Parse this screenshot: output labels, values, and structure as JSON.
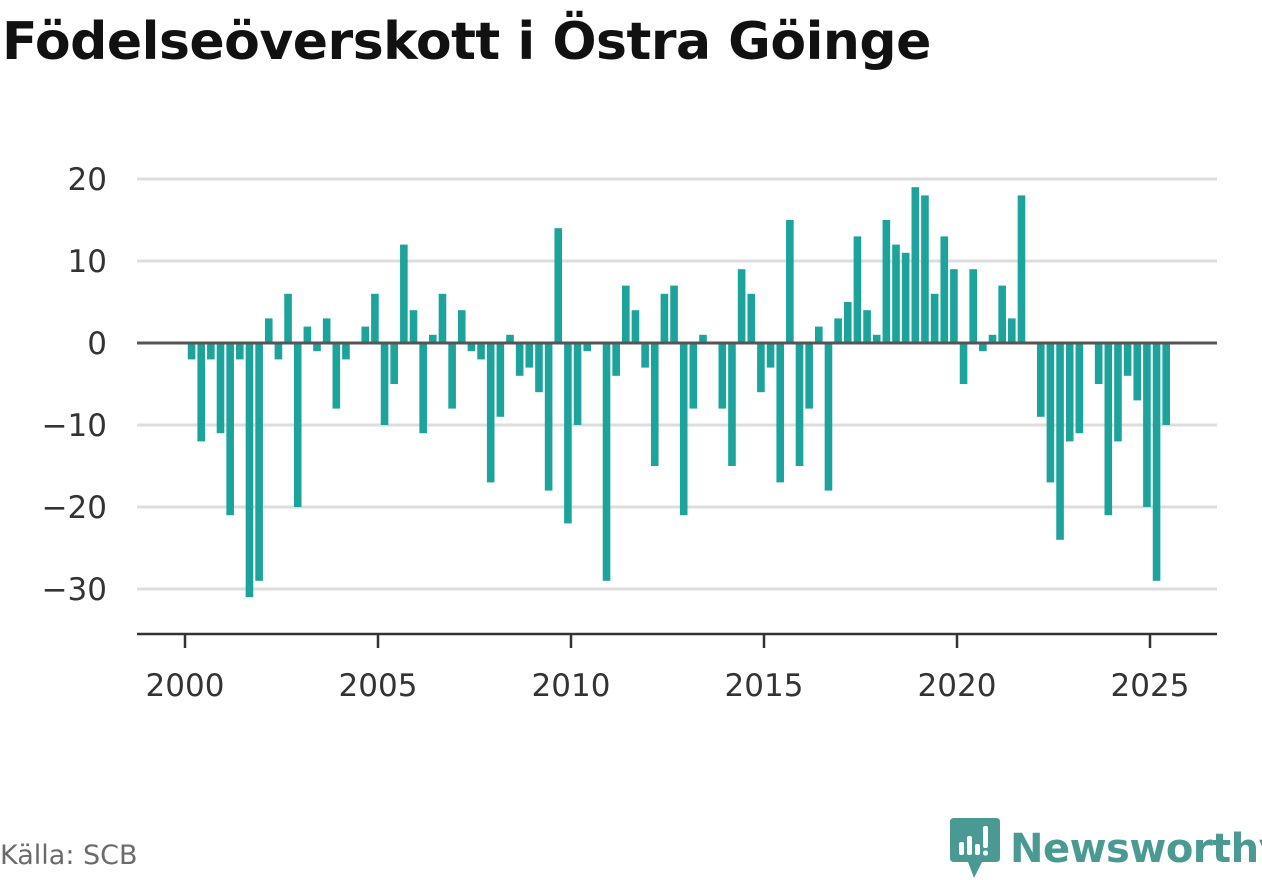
{
  "title": "Födelseöverskott i Östra Göinge",
  "source": "Källa: SCB",
  "brand": {
    "name": "Newsworthy",
    "icon": "newsworthy-logo-icon",
    "color": "#4a9a93"
  },
  "colors": {
    "bar": "#1ba39c",
    "grid": "#dddddd",
    "zero": "#555555",
    "axis": "#333333"
  },
  "chart_data": {
    "type": "bar",
    "title": "Födelseöverskott i Östra Göinge",
    "xlabel": "",
    "ylabel": "",
    "ylim": [
      -36,
      24
    ],
    "xlim": [
      1999.8,
      2026.1
    ],
    "yticks": [
      20,
      10,
      0,
      -10,
      -20,
      -30
    ],
    "ytick_labels": [
      "20",
      "10",
      "0",
      "−10",
      "−20",
      "−30"
    ],
    "xticks": [
      2000,
      2005,
      2010,
      2015,
      2020,
      2025
    ],
    "xtick_labels": [
      "2000",
      "2005",
      "2010",
      "2015",
      "2020",
      "2025"
    ],
    "grid": true,
    "period": "quarterly",
    "x": [
      2000.17,
      2000.42,
      2000.67,
      2000.92,
      2001.17,
      2001.42,
      2001.67,
      2001.92,
      2002.17,
      2002.42,
      2002.67,
      2002.92,
      2003.17,
      2003.42,
      2003.67,
      2003.92,
      2004.17,
      2004.42,
      2004.67,
      2004.92,
      2005.17,
      2005.42,
      2005.67,
      2005.92,
      2006.17,
      2006.42,
      2006.67,
      2006.92,
      2007.17,
      2007.42,
      2007.67,
      2007.92,
      2008.17,
      2008.42,
      2008.67,
      2008.92,
      2009.17,
      2009.42,
      2009.67,
      2009.92,
      2010.17,
      2010.42,
      2010.67,
      2010.92,
      2011.17,
      2011.42,
      2011.67,
      2011.92,
      2012.17,
      2012.42,
      2012.67,
      2012.92,
      2013.17,
      2013.42,
      2013.67,
      2013.92,
      2014.17,
      2014.42,
      2014.67,
      2014.92,
      2015.17,
      2015.42,
      2015.67,
      2015.92,
      2016.17,
      2016.42,
      2016.67,
      2016.92,
      2017.17,
      2017.42,
      2017.67,
      2017.92,
      2018.17,
      2018.42,
      2018.67,
      2018.92,
      2019.17,
      2019.42,
      2019.67,
      2019.92,
      2020.17,
      2020.42,
      2020.67,
      2020.92,
      2021.17,
      2021.42,
      2021.67,
      2021.92,
      2022.17,
      2022.42,
      2022.67,
      2022.92,
      2023.17,
      2023.42,
      2023.67,
      2023.92,
      2024.17,
      2024.42,
      2024.67,
      2024.92,
      2025.17,
      2025.42
    ],
    "values": [
      -2,
      -12,
      -2,
      -11,
      -21,
      -2,
      -31,
      -29,
      3,
      -2,
      6,
      -20,
      2,
      -1,
      3,
      -8,
      -2,
      0,
      2,
      6,
      -10,
      -5,
      12,
      4,
      -11,
      1,
      6,
      -8,
      4,
      -1,
      -2,
      -17,
      -9,
      1,
      -4,
      -3,
      -6,
      -18,
      14,
      -22,
      -10,
      -1,
      0,
      -29,
      -4,
      7,
      4,
      -3,
      -15,
      6,
      7,
      -21,
      -8,
      1,
      0,
      -8,
      -15,
      9,
      6,
      -6,
      -3,
      -17,
      15,
      -15,
      -8,
      2,
      -18,
      3,
      5,
      13,
      4,
      1,
      15,
      12,
      11,
      19,
      18,
      6,
      13,
      9,
      -5,
      9,
      -1,
      1,
      7,
      3,
      18,
      0,
      -9,
      -17,
      -24,
      -12,
      -11,
      0,
      -5,
      -21,
      -12,
      -4,
      -7,
      -20,
      -29,
      -10
    ]
  }
}
